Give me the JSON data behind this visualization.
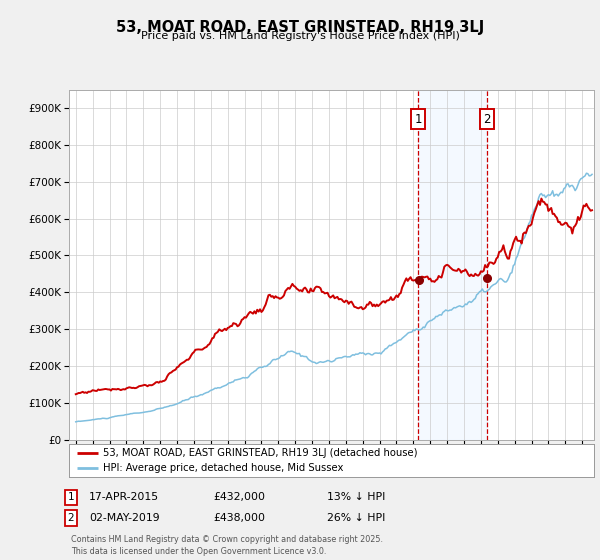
{
  "title": "53, MOAT ROAD, EAST GRINSTEAD, RH19 3LJ",
  "subtitle": "Price paid vs. HM Land Registry's House Price Index (HPI)",
  "legend_line1": "53, MOAT ROAD, EAST GRINSTEAD, RH19 3LJ (detached house)",
  "legend_line2": "HPI: Average price, detached house, Mid Sussex",
  "annotation1_date": "17-APR-2015",
  "annotation1_price": "£432,000",
  "annotation1_hpi": "13% ↓ HPI",
  "annotation2_date": "02-MAY-2019",
  "annotation2_price": "£438,000",
  "annotation2_hpi": "26% ↓ HPI",
  "sale1_date_num": 2015.3,
  "sale2_date_num": 2019.35,
  "sale1_price": 432000,
  "sale2_price": 438000,
  "hpi_color": "#7fbfdf",
  "price_color": "#cc0000",
  "marker_color": "#8b0000",
  "vline_color": "#cc0000",
  "shade_color": "#ddeeff",
  "footer": "Contains HM Land Registry data © Crown copyright and database right 2025.\nThis data is licensed under the Open Government Licence v3.0.",
  "ylim": [
    0,
    950000
  ],
  "yticks": [
    0,
    100000,
    200000,
    300000,
    400000,
    500000,
    600000,
    700000,
    800000,
    900000
  ],
  "bg_color": "#f0f0f0",
  "plot_bg_color": "#ffffff",
  "grid_color": "#cccccc"
}
